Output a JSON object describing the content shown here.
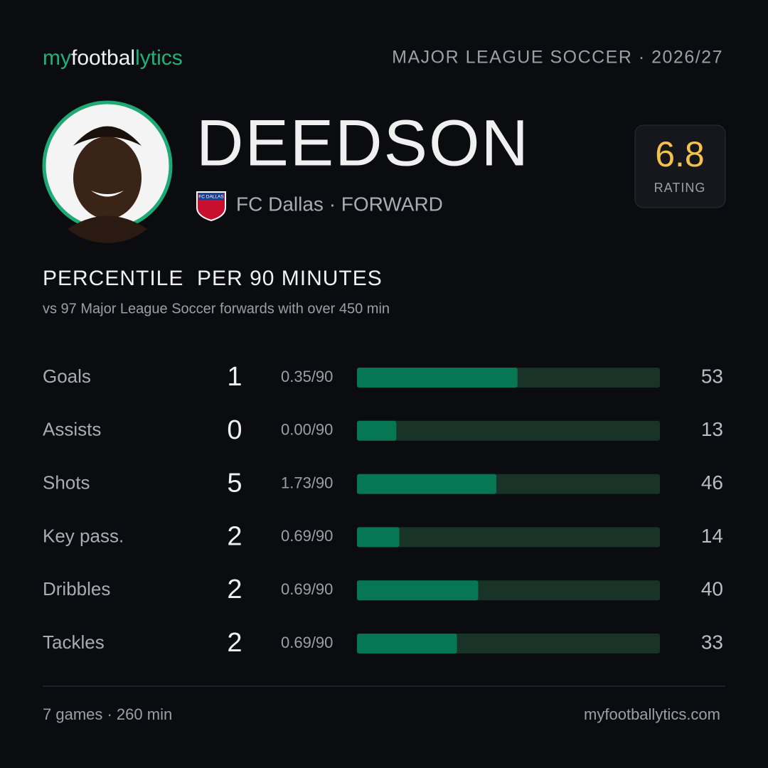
{
  "header": {
    "brand": [
      "my",
      "footbal",
      "lytics"
    ],
    "league_season": "MAJOR LEAGUE SOCCER · 2026/27"
  },
  "player": {
    "name": "DEEDSON",
    "team_position": "FC Dallas · FORWARD",
    "logo_text": "FC DALLAS",
    "rating": 6.8,
    "rating_label": "RATING"
  },
  "section": {
    "title": "PERCENTILE  PER 90 MINUTES",
    "subtitle": "vs 97 Major League Soccer forwards with over 450 min"
  },
  "stats": {
    "xlim": [
      0,
      100
    ],
    "rows": [
      {
        "label": "Goals",
        "count": 1,
        "per90": "0.35/90",
        "percentile": 53
      },
      {
        "label": "Assists",
        "count": 0,
        "per90": "0.00/90",
        "percentile": 13
      },
      {
        "label": "Shots",
        "count": 5,
        "per90": "1.73/90",
        "percentile": 46
      },
      {
        "label": "Key pass.",
        "count": 2,
        "per90": "0.69/90",
        "percentile": 14
      },
      {
        "label": "Dribbles",
        "count": 2,
        "per90": "0.69/90",
        "percentile": 40
      },
      {
        "label": "Tackles",
        "count": 2,
        "per90": "0.69/90",
        "percentile": 33
      }
    ]
  },
  "footer": {
    "summary": "7 games · 260 min",
    "site": "myfootballytics.com"
  }
}
